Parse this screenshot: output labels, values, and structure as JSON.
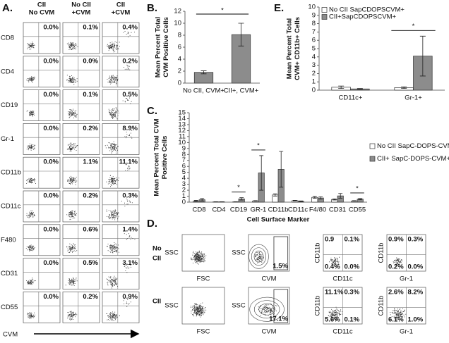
{
  "panel_a": {
    "label": "A.",
    "columns": [
      [
        "CII",
        "No CVM"
      ],
      [
        "No CII",
        "+CVM"
      ],
      [
        "CII",
        "+CVM"
      ]
    ],
    "rows": [
      {
        "marker": "CD8",
        "percents": [
          "0.0%",
          "0.1%",
          "0.4%"
        ]
      },
      {
        "marker": "CD4",
        "percents": [
          "0.0%",
          "0.0%",
          "0.2%"
        ]
      },
      {
        "marker": "CD19",
        "percents": [
          "0.0%",
          "0.1%",
          "0.5%"
        ]
      },
      {
        "marker": "Gr-1",
        "percents": [
          "0.0%",
          "0.2%",
          "8.9%"
        ]
      },
      {
        "marker": "CD11b",
        "percents": [
          "0.0%",
          "1.1%",
          "11.1%"
        ]
      },
      {
        "marker": "CD11c",
        "percents": [
          "0.0%",
          "0.2%",
          "0.3%"
        ]
      },
      {
        "marker": "F480",
        "percents": [
          "0.0%",
          "0.6%",
          "1.4%"
        ]
      },
      {
        "marker": "CD31",
        "percents": [
          "0.0%",
          "0.5%",
          "3.1%"
        ]
      },
      {
        "marker": "CD55",
        "percents": [
          "0.0%",
          "0.2%",
          "0.9%"
        ]
      }
    ],
    "xlabel": "CVM"
  },
  "chart_data": [
    {
      "type": "bar",
      "label": "B.",
      "ylabel": [
        "Mean Percent Total",
        "CVM Positive Cells"
      ],
      "categories": [
        "No CII, CVM+",
        "CII+, CVM+"
      ],
      "values": [
        1.8,
        8.1
      ],
      "errors": [
        0.25,
        1.9
      ],
      "color": "#8c8c8c",
      "ylim": [
        0,
        12
      ],
      "yticks": [
        0,
        2,
        4,
        6,
        8,
        10,
        12
      ],
      "significance": "*"
    },
    {
      "type": "bar",
      "label": "C.",
      "ylabel": [
        "Mean Percent Total CVM",
        "Positive Cells"
      ],
      "xlabel": "Cell Surface Marker",
      "categories": [
        "CD8",
        "CD4",
        "CD19",
        "GR-1",
        "CD11b",
        "CD11c",
        "F4/80",
        "CD31",
        "CD55"
      ],
      "series": [
        {
          "name": "No CII SapC-DOPS-CVM+",
          "color": "#ffffff",
          "values": [
            0.2,
            0.05,
            0.05,
            0.2,
            1.2,
            0.25,
            0.8,
            0.45,
            0.2
          ],
          "errors": [
            0.1,
            0.02,
            0.02,
            0.05,
            0.2,
            0.05,
            0.15,
            0.1,
            0.05
          ]
        },
        {
          "name": "CII+ SapC-DOPS-CVM+",
          "color": "#8c8c8c",
          "values": [
            0.4,
            0.05,
            0.55,
            4.9,
            5.5,
            0.15,
            0.7,
            1.05,
            0.5
          ],
          "errors": [
            0.2,
            0.02,
            0.2,
            2.9,
            3.0,
            0.05,
            0.2,
            0.4,
            0.1
          ]
        }
      ],
      "ylim": [
        0,
        15
      ],
      "yticks": [
        0,
        1,
        2,
        3,
        4,
        5,
        6,
        7,
        8,
        9,
        10,
        11,
        12,
        13,
        14,
        15
      ],
      "significance": [
        null,
        null,
        "*",
        "*",
        null,
        null,
        null,
        null,
        "*"
      ],
      "legend": "right"
    },
    {
      "type": "bar",
      "label": "E.",
      "ylabel": [
        "Mean Percent Total",
        "CVM+ CD11b+ Cells"
      ],
      "categories": [
        "CD11c+",
        "Gr-1+"
      ],
      "series": [
        {
          "name": "No CII SapCDOPSCVM+",
          "color": "#ffffff",
          "values": [
            0.35,
            0.3
          ],
          "errors": [
            0.15,
            0.1
          ]
        },
        {
          "name": "CII+SapCDOPSCVM+",
          "color": "#8c8c8c",
          "values": [
            0.15,
            4.1
          ],
          "errors": [
            0.05,
            2.4
          ]
        }
      ],
      "ylim": [
        0,
        10
      ],
      "yticks": [
        0,
        1,
        2,
        3,
        4,
        5,
        6,
        7,
        8,
        9,
        10
      ],
      "significance": [
        null,
        "*"
      ],
      "legend": "upper left"
    }
  ],
  "panel_d": {
    "label": "D.",
    "axis_labels": {
      "ssc": "SSC",
      "fsc": "FSC",
      "cvm": "CVM",
      "cd11b": "CD11b",
      "cd11c": "CD11c",
      "gr1": "Gr-1"
    },
    "rows": [
      {
        "label": [
          "No",
          "CII"
        ],
        "cvm_gate": "1.5%",
        "cd11c_quadrants": [
          "0.9",
          "0.1%",
          "0.4%",
          "0.0%"
        ],
        "gr1_quadrants": [
          "0.9%",
          "0.3%",
          "0.2%",
          "0.0%"
        ]
      },
      {
        "label": [
          "CII"
        ],
        "cvm_gate": "17.1%",
        "cd11c_quadrants": [
          "11.1%",
          "0.3%",
          "5.6%",
          "0.1%"
        ],
        "gr1_quadrants": [
          "2.6%",
          "8.2%",
          "6.1%",
          "1.0%"
        ]
      }
    ]
  }
}
